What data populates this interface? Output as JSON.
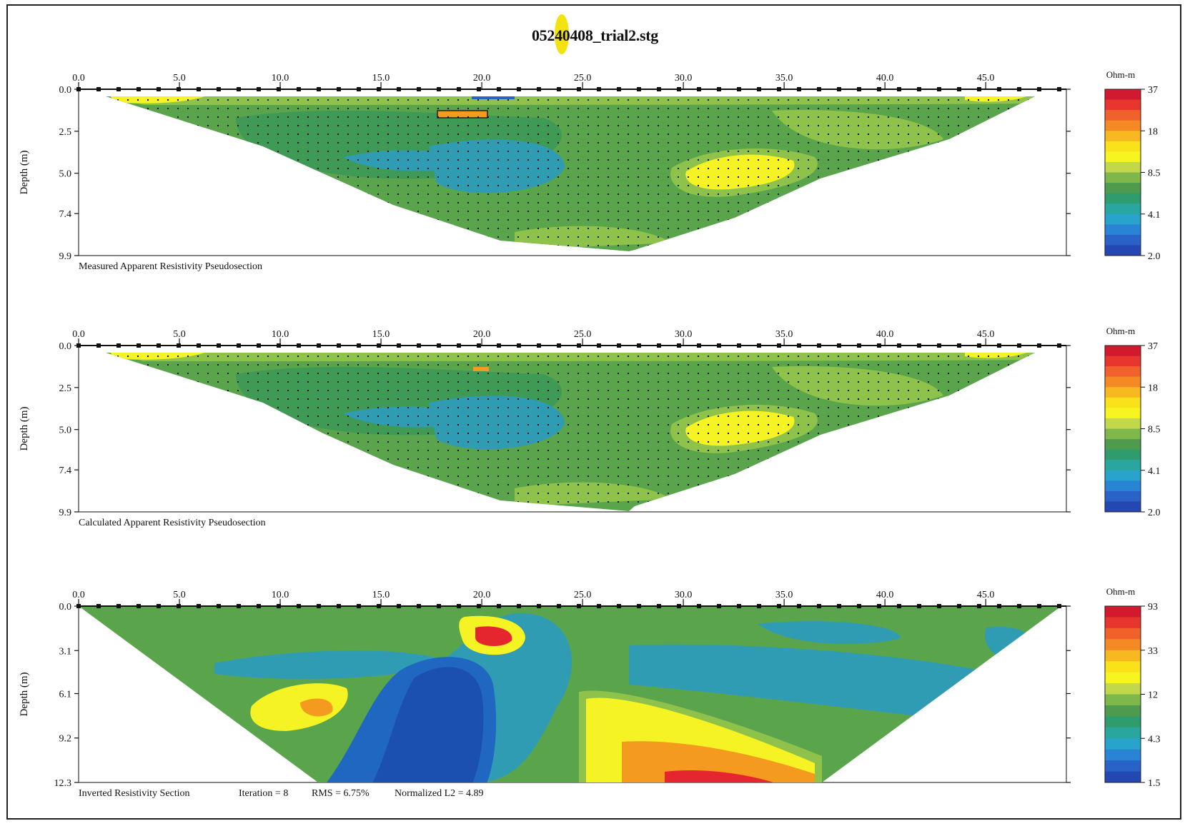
{
  "title": "05240408_trial2.stg",
  "chart_data": [
    {
      "type": "heatmap",
      "caption": "Measured Apparent Resistivity Pseudosection",
      "ylabel": "Depth (m)",
      "x_ticks": [
        "0.0",
        "5.0",
        "10.0",
        "15.0",
        "20.0",
        "25.0",
        "30.0",
        "35.0",
        "40.0",
        "45.0"
      ],
      "y_ticks": [
        "0.0",
        "2.5",
        "5.0",
        "7.4",
        "9.9"
      ],
      "xlim": [
        0,
        49
      ],
      "ylim": [
        0,
        9.9
      ],
      "colorbar": {
        "unit": "Ohm-m",
        "labels": [
          "37",
          "18",
          "8.5",
          "4.1",
          "2.0"
        ]
      }
    },
    {
      "type": "heatmap",
      "caption": "Calculated Apparent Resistivity Pseudosection",
      "ylabel": "Depth (m)",
      "x_ticks": [
        "0.0",
        "5.0",
        "10.0",
        "15.0",
        "20.0",
        "25.0",
        "30.0",
        "35.0",
        "40.0",
        "45.0"
      ],
      "y_ticks": [
        "0.0",
        "2.5",
        "5.0",
        "7.4",
        "9.9"
      ],
      "xlim": [
        0,
        49
      ],
      "ylim": [
        0,
        9.9
      ],
      "colorbar": {
        "unit": "Ohm-m",
        "labels": [
          "37",
          "18",
          "8.5",
          "4.1",
          "2.0"
        ]
      }
    },
    {
      "type": "heatmap",
      "caption": "Inverted Resistivity Section",
      "stats": [
        "Iteration = 8",
        "RMS = 6.75%",
        "Normalized L2 = 4.89"
      ],
      "ylabel": "Depth (m)",
      "x_ticks": [
        "0.0",
        "5.0",
        "10.0",
        "15.0",
        "20.0",
        "25.0",
        "30.0",
        "35.0",
        "40.0",
        "45.0"
      ],
      "y_ticks": [
        "0.0",
        "3.1",
        "6.1",
        "9.2",
        "12.3"
      ],
      "xlim": [
        0,
        49
      ],
      "ylim": [
        0,
        12.3
      ],
      "colorbar": {
        "unit": "Ohm-m",
        "labels": [
          "93",
          "33",
          "12",
          "4.3",
          "1.5"
        ]
      }
    }
  ],
  "colors": {
    "scale": [
      "#d3192d",
      "#e8362e",
      "#f1612b",
      "#f58a25",
      "#f8b820",
      "#f9e21a",
      "#f6f51f",
      "#c2d84a",
      "#7eb84b",
      "#4f9b4e",
      "#2f9c6d",
      "#2aa6a0",
      "#28a4cc",
      "#2a84d6",
      "#2a63c8",
      "#2448b1"
    ],
    "green": "#5aa54c",
    "green_dark": "#3e9a55",
    "green_light": "#8fc24a",
    "teal": "#2f9cb4",
    "blue": "#1f67c0",
    "blue_deep": "#1b4fb0",
    "yellow": "#f5f323",
    "orange": "#f39a1f",
    "red": "#e5262e"
  }
}
